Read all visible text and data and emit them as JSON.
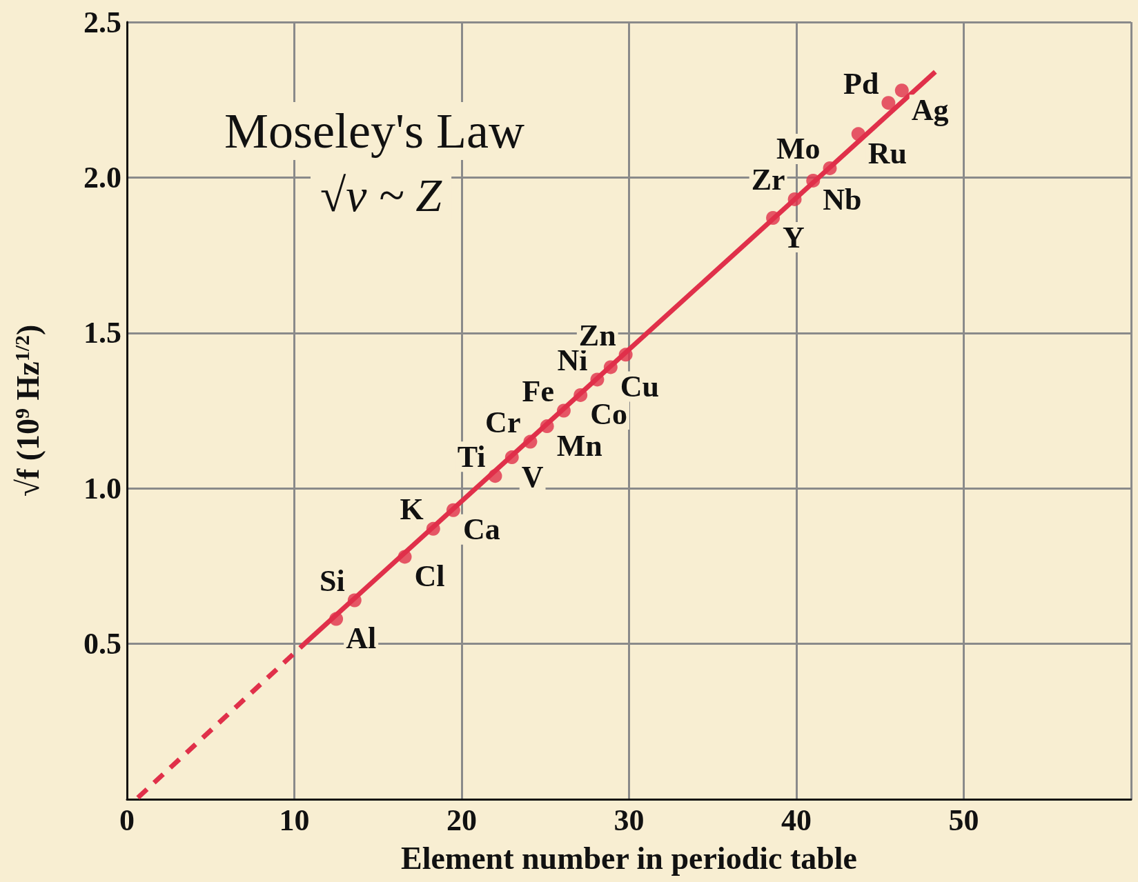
{
  "chart_data": {
    "type": "scatter",
    "title": "Moseley's Law",
    "xlabel": "Element number in periodic table",
    "ylabel": "√f (10$^{9}$ Hz$^{1/2}$)",
    "xlim": [
      0,
      60
    ],
    "xticks": [
      0,
      10,
      20,
      30,
      40,
      50,
      {
        "value": 60,
        "label": null
      }
    ],
    "ylim": [
      0,
      2.5
    ],
    "yticks": [
      {
        "value": 0.5,
        "label": "0.5"
      },
      {
        "value": 1,
        "label": "1.0"
      },
      {
        "value": 1.5,
        "label": "1.5"
      },
      {
        "value": 2,
        "label": "2.0"
      },
      {
        "value": 2.5,
        "label": "2.5"
      }
    ],
    "grid": true,
    "marker": "circle",
    "series": [
      {
        "color": "#e0304a",
        "x": [
          12.5,
          13.6,
          16.6,
          18.3,
          19.5,
          22.0,
          23.0,
          24.1,
          25.1,
          26.1,
          27.1,
          28.1,
          28.9,
          29.8,
          38.6,
          39.9,
          41.0,
          42.0,
          43.7,
          45.5,
          46.3
        ],
        "values": [
          0.58,
          0.64,
          0.78,
          0.87,
          0.93,
          1.04,
          1.1,
          1.15,
          1.2,
          1.25,
          1.3,
          1.35,
          1.39,
          1.43,
          1.87,
          1.93,
          1.99,
          2.03,
          2.14,
          2.24,
          2.28
        ]
      },
      {
        "type": "line",
        "color": "#e0304a",
        "line_style": "solid",
        "marker": "none",
        "x": [
          10.6,
          48.3
        ],
        "values": [
          0.5,
          2.34
        ]
      },
      {
        "type": "line",
        "color": "#e0304a",
        "line_style": "dashed",
        "marker": "none",
        "x": [
          0.65,
          10.6
        ],
        "values": [
          0.005,
          0.5
        ]
      }
    ],
    "annotations": [
      "√ν ~ Z",
      {
        "text": "Al",
        "x": 12.5,
        "y": 0.58
      },
      {
        "text": "Si",
        "x": 13.6,
        "y": 0.64
      },
      {
        "text": "Cl",
        "x": 16.6,
        "y": 0.78
      },
      {
        "text": "K",
        "x": 18.3,
        "y": 0.87
      },
      {
        "text": "Ca",
        "x": 19.5,
        "y": 0.93
      },
      {
        "text": "Ti",
        "x": 22.0,
        "y": 1.04
      },
      {
        "text": "V",
        "x": 23.0,
        "y": 1.1
      },
      {
        "text": "Cr",
        "x": 24.1,
        "y": 1.15
      },
      {
        "text": "Mn",
        "x": 25.1,
        "y": 1.2
      },
      {
        "text": "Fe",
        "x": 26.1,
        "y": 1.25
      },
      {
        "text": "Co",
        "x": 27.1,
        "y": 1.3
      },
      {
        "text": "Ni",
        "x": 28.1,
        "y": 1.35
      },
      {
        "text": "Cu",
        "x": 28.9,
        "y": 1.39
      },
      {
        "text": "Zn",
        "x": 29.8,
        "y": 1.43
      },
      {
        "text": "Y",
        "x": 38.6,
        "y": 1.87
      },
      {
        "text": "Zr",
        "x": 39.9,
        "y": 1.93
      },
      {
        "text": "Nb",
        "x": 41.0,
        "y": 1.99
      },
      {
        "text": "Mo",
        "x": 42.0,
        "y": 2.03
      },
      {
        "text": "Ru",
        "x": 43.7,
        "y": 2.14
      },
      {
        "text": "Pd",
        "x": 45.5,
        "y": 2.24
      },
      {
        "text": "Ag",
        "x": 46.3,
        "y": 2.28
      }
    ]
  }
}
